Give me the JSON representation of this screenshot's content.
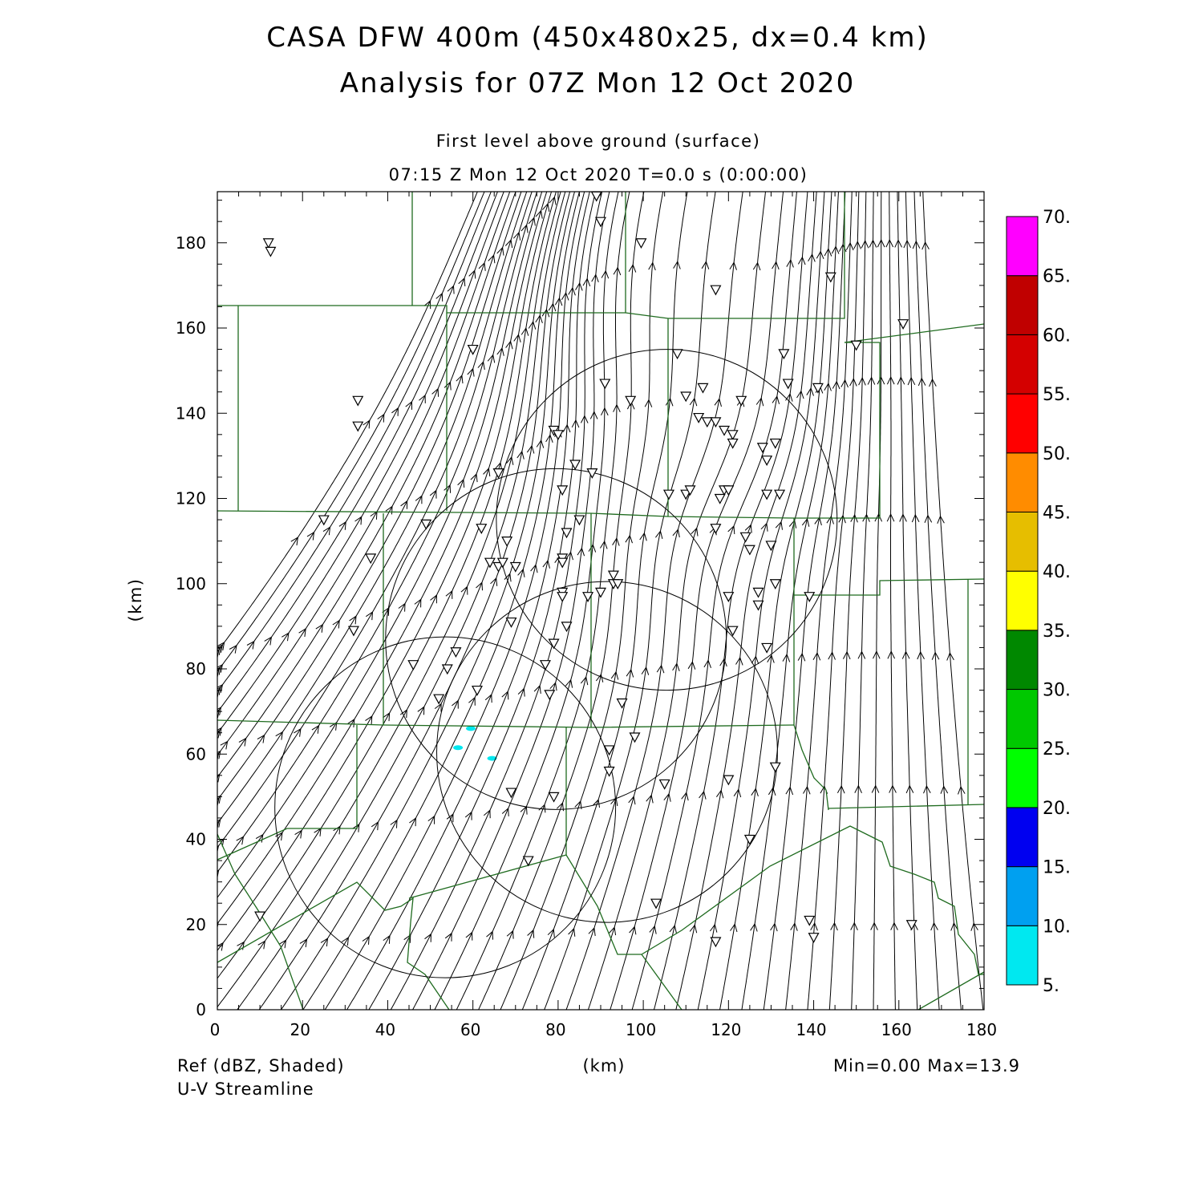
{
  "header": {
    "title_line1": "CASA DFW 400m (450x480x25, dx=0.4 km)",
    "title_line2": "Analysis for 07Z Mon 12 Oct 2020",
    "level_label": "First level above ground (surface)",
    "time_label": "07:15 Z Mon 12 Oct 2020    T=0.0 s (0:00:00)"
  },
  "footer": {
    "field_label": "Ref (dBZ, Shaded)",
    "vector_label": "U-V Streamline",
    "xunit_label": "(km)",
    "minmax_label": "Min=0.00  Max=13.9"
  },
  "chart_data": {
    "type": "map-contour",
    "xlabel": "(km)",
    "ylabel": "(km)",
    "xlim": [
      0,
      180
    ],
    "ylim": [
      0,
      192
    ],
    "x_ticks": [
      0,
      20,
      40,
      60,
      80,
      100,
      120,
      140,
      160,
      180
    ],
    "y_ticks": [
      0,
      20,
      40,
      60,
      80,
      100,
      120,
      140,
      160,
      180
    ],
    "x_tick_labels": [
      "0",
      "20",
      "40",
      "60",
      "80",
      "100",
      "120",
      "140",
      "160",
      "180"
    ],
    "y_tick_labels": [
      "0",
      "20",
      "40",
      "60",
      "80",
      "100",
      "120",
      "140",
      "160",
      "180"
    ],
    "colorbar": {
      "levels": [
        5,
        10,
        15,
        20,
        25,
        30,
        35,
        40,
        45,
        50,
        55,
        60,
        65,
        70
      ],
      "labels": [
        "5.",
        "10.",
        "15.",
        "20.",
        "25.",
        "30.",
        "35.",
        "40.",
        "45.",
        "50.",
        "55.",
        "60.",
        "65.",
        "70."
      ],
      "colors": [
        "#00e8f0",
        "#00a0f0",
        "#0000f0",
        "#00ff00",
        "#00c800",
        "#008800",
        "#ffff00",
        "#e6be00",
        "#ff8c00",
        "#ff0000",
        "#d40000",
        "#c00000",
        "#ff00ff"
      ]
    },
    "radar_rings": [
      {
        "cx": 53.5,
        "cy": 47.5,
        "r": 40
      },
      {
        "cx": 91.5,
        "cy": 60.5,
        "r": 40
      },
      {
        "cx": 79.5,
        "cy": 87,
        "r": 40
      },
      {
        "cx": 105.5,
        "cy": 115,
        "r": 40
      }
    ],
    "reflectivity_echoes": [
      {
        "x": 59.5,
        "y": 66,
        "dbz": 8
      },
      {
        "x": 56.5,
        "y": 61.5,
        "dbz": 6
      },
      {
        "x": 64.5,
        "y": 59,
        "dbz": 7
      }
    ],
    "station_markers": [
      [
        12,
        180
      ],
      [
        12.5,
        178
      ],
      [
        89,
        191
      ],
      [
        90,
        185
      ],
      [
        99.5,
        180
      ],
      [
        144,
        172
      ],
      [
        117,
        169
      ],
      [
        161,
        161
      ],
      [
        150,
        156
      ],
      [
        60,
        155
      ],
      [
        108,
        154
      ],
      [
        133,
        154
      ],
      [
        33,
        143
      ],
      [
        91,
        147
      ],
      [
        97,
        143
      ],
      [
        110,
        144
      ],
      [
        114,
        146
      ],
      [
        123,
        143
      ],
      [
        134,
        147
      ],
      [
        141,
        146
      ],
      [
        33,
        137
      ],
      [
        79,
        136
      ],
      [
        80,
        135
      ],
      [
        113,
        139
      ],
      [
        115,
        138
      ],
      [
        117,
        138
      ],
      [
        119,
        136
      ],
      [
        121,
        135
      ],
      [
        121,
        133
      ],
      [
        128,
        132
      ],
      [
        129,
        129
      ],
      [
        131,
        133
      ],
      [
        66,
        126
      ],
      [
        84,
        128
      ],
      [
        88,
        126
      ],
      [
        81,
        122
      ],
      [
        106,
        121
      ],
      [
        110,
        121
      ],
      [
        111,
        122
      ],
      [
        118,
        120
      ],
      [
        119,
        122
      ],
      [
        120,
        122
      ],
      [
        129,
        121
      ],
      [
        132,
        121
      ],
      [
        25,
        115
      ],
      [
        49,
        114
      ],
      [
        62,
        113
      ],
      [
        85,
        115
      ],
      [
        68,
        110
      ],
      [
        82,
        112
      ],
      [
        117,
        113
      ],
      [
        124,
        111
      ],
      [
        125,
        108
      ],
      [
        130,
        109
      ],
      [
        36,
        106
      ],
      [
        64,
        105
      ],
      [
        66,
        104
      ],
      [
        67,
        105
      ],
      [
        70,
        104
      ],
      [
        81,
        106
      ],
      [
        81,
        105
      ],
      [
        93,
        102
      ],
      [
        93,
        100
      ],
      [
        94,
        100
      ],
      [
        131,
        100
      ],
      [
        81,
        98
      ],
      [
        81,
        97
      ],
      [
        87,
        97
      ],
      [
        90,
        98
      ],
      [
        120,
        97
      ],
      [
        127,
        98
      ],
      [
        127,
        95
      ],
      [
        139,
        97
      ],
      [
        32,
        89
      ],
      [
        69,
        91
      ],
      [
        82,
        90
      ],
      [
        121,
        89
      ],
      [
        79,
        86
      ],
      [
        77,
        81
      ],
      [
        46,
        81
      ],
      [
        54,
        80
      ],
      [
        56,
        84
      ],
      [
        129,
        85
      ],
      [
        52,
        73
      ],
      [
        61,
        75
      ],
      [
        78,
        74
      ],
      [
        95,
        72
      ],
      [
        98,
        64
      ],
      [
        92,
        61
      ],
      [
        131,
        57
      ],
      [
        92,
        56
      ],
      [
        120,
        54
      ],
      [
        105,
        53
      ],
      [
        69,
        51
      ],
      [
        79,
        50
      ],
      [
        125,
        40
      ],
      [
        73,
        35
      ],
      [
        10,
        22
      ],
      [
        103,
        25
      ],
      [
        139,
        21
      ],
      [
        140,
        17
      ],
      [
        117,
        16
      ],
      [
        163,
        20
      ]
    ],
    "streamline_field": {
      "description": "Southerly to south-southwesterly surface flow with difluence near x=90-140 km",
      "flow_direction": "northward"
    }
  }
}
